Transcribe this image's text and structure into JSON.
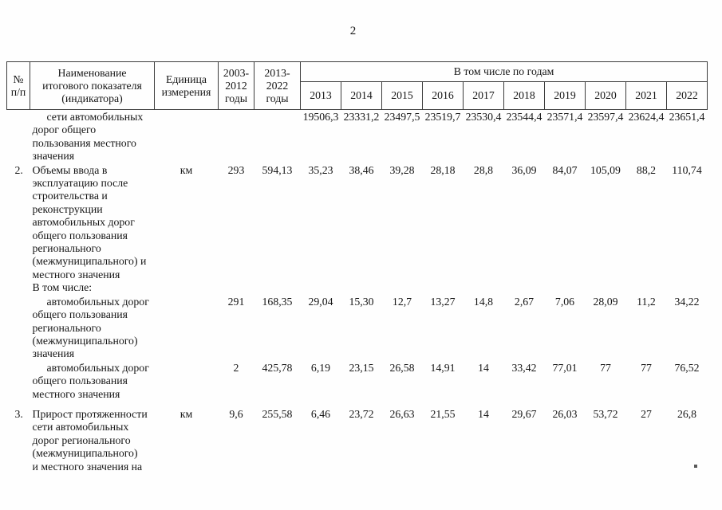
{
  "page": {
    "number": "2"
  },
  "table": {
    "header": {
      "num": "№\nп/п",
      "name": "Наименование\nитогового показателя\n(индикатора)",
      "unit": "Единица\nизмерения",
      "period1": "2003-\n2012\nгоды",
      "period2": "2013-\n2022\nгоды",
      "years_group": "В том числе по годам",
      "years": [
        "2013",
        "2014",
        "2015",
        "2016",
        "2017",
        "2018",
        "2019",
        "2020",
        "2021",
        "2022"
      ]
    },
    "rows": [
      {
        "num": "",
        "name": "сети автомобильных\nдорог общего\nпользования местного\nзначения",
        "first_line_indent": true,
        "gap_before": false,
        "unit": "",
        "total_2003_2012": "",
        "total_2013_2022": "",
        "values": [
          "19506,3",
          "23331,2",
          "23497,5",
          "23519,7",
          "23530,4",
          "23544,4",
          "23571,4",
          "23597,4",
          "23624,4",
          "23651,4"
        ]
      },
      {
        "num": "2.",
        "name": "Объемы ввода в\nэксплуатацию после\nстроительства и\nреконструкции\nавтомобильных дорог\nобщего пользования\nрегионального\n(межмуниципального) и\nместного значения\nВ том числе:",
        "first_line_indent": false,
        "gap_before": false,
        "unit": "км",
        "total_2003_2012": "293",
        "total_2013_2022": "594,13",
        "values": [
          "35,23",
          "38,46",
          "39,28",
          "28,18",
          "28,8",
          "36,09",
          "84,07",
          "105,09",
          "88,2",
          "110,74"
        ]
      },
      {
        "num": "",
        "name": "автомобильных дорог\nобщего пользования\nрегионального\n(межмуниципального)\nзначения",
        "first_line_indent": true,
        "gap_before": false,
        "unit": "",
        "total_2003_2012": "291",
        "total_2013_2022": "168,35",
        "values": [
          "29,04",
          "15,30",
          "12,7",
          "13,27",
          "14,8",
          "2,67",
          "7,06",
          "28,09",
          "11,2",
          "34,22"
        ]
      },
      {
        "num": "",
        "name": "автомобильных дорог\nобщего пользования\nместного значения",
        "first_line_indent": true,
        "gap_before": false,
        "unit": "",
        "total_2003_2012": "2",
        "total_2013_2022": "425,78",
        "values": [
          "6,19",
          "23,15",
          "26,58",
          "14,91",
          "14",
          "33,42",
          "77,01",
          "77",
          "77",
          "76,52"
        ]
      },
      {
        "num": "3.",
        "name": "Прирост протяженности\nсети автомобильных\nдорог регионального\n(межмуниципального)\nи местного значения на",
        "first_line_indent": false,
        "gap_before": true,
        "unit": "км",
        "total_2003_2012": "9,6",
        "total_2013_2022": "255,58",
        "values": [
          "6,46",
          "23,72",
          "26,63",
          "21,55",
          "14",
          "29,67",
          "26,03",
          "53,72",
          "27",
          "26,8"
        ]
      }
    ]
  }
}
